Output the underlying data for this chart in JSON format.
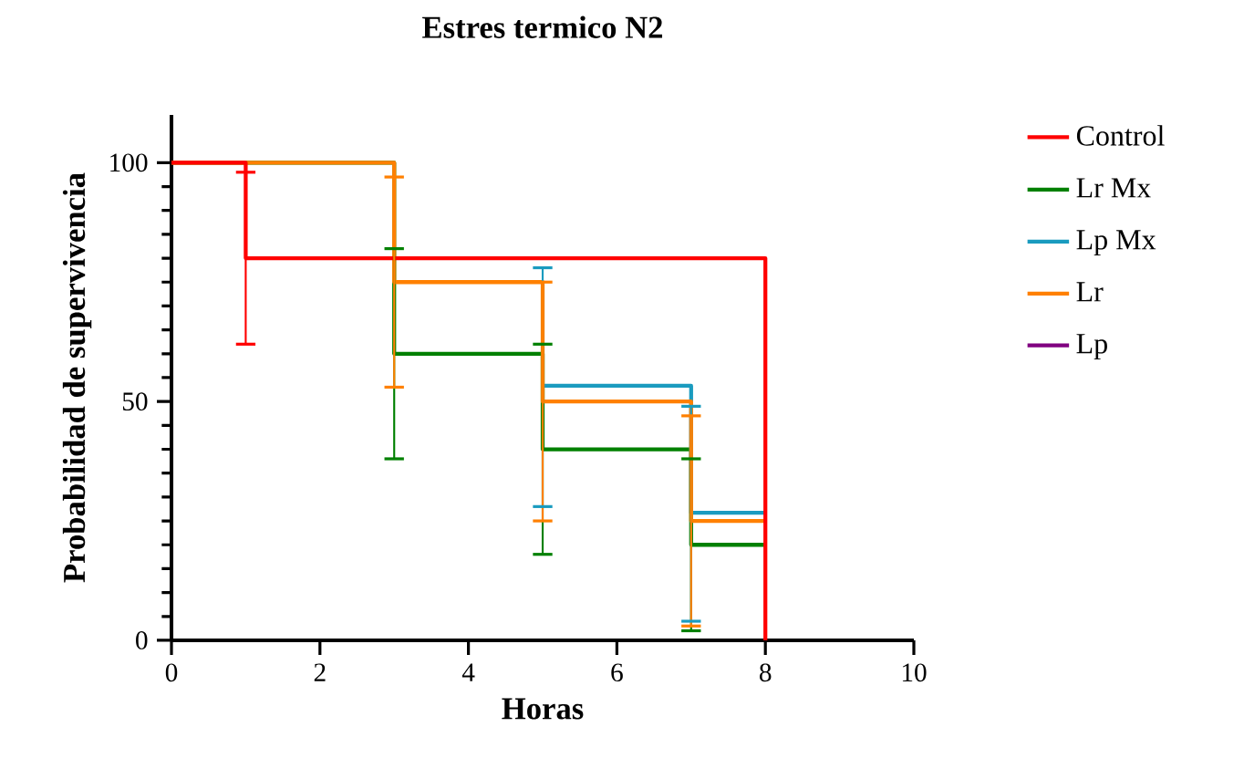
{
  "chart_data": {
    "type": "step",
    "title": "Estres termico N2",
    "xlabel": "Horas",
    "ylabel": "Probabilidad de supervivencia",
    "xlim": [
      0,
      10
    ],
    "xticks": [
      0,
      2,
      4,
      6,
      8,
      10
    ],
    "ylim": [
      0,
      110
    ],
    "yticks": [
      0,
      50,
      100
    ],
    "grid": false,
    "legend": "right",
    "series": [
      {
        "name": "Control",
        "color": "#ff0000",
        "x": [
          0,
          1,
          8
        ],
        "values": [
          100,
          80,
          0
        ],
        "errors": [
          null,
          [
            62,
            98
          ],
          null
        ]
      },
      {
        "name": "Lr Mx",
        "color": "#008000",
        "x": [
          0,
          3,
          5,
          7,
          8
        ],
        "values": [
          100,
          60,
          40,
          20,
          20
        ],
        "errors": [
          null,
          [
            38,
            82
          ],
          [
            18,
            62
          ],
          [
            2,
            38
          ],
          null
        ]
      },
      {
        "name": "Lp Mx",
        "color": "#1a9bbf",
        "x": [
          5,
          7,
          8
        ],
        "values": [
          53.3,
          26.7,
          26.7
        ],
        "errors": [
          [
            28,
            78
          ],
          [
            4,
            49
          ],
          null
        ]
      },
      {
        "name": "Lr",
        "color": "#ff8000",
        "x": [
          0,
          3,
          5,
          7,
          8
        ],
        "values": [
          100,
          75,
          50,
          25,
          25
        ],
        "errors": [
          null,
          [
            53,
            97
          ],
          [
            25,
            75
          ],
          [
            3,
            47
          ],
          null
        ]
      },
      {
        "name": "Lp",
        "color": "#800080"
      }
    ]
  }
}
